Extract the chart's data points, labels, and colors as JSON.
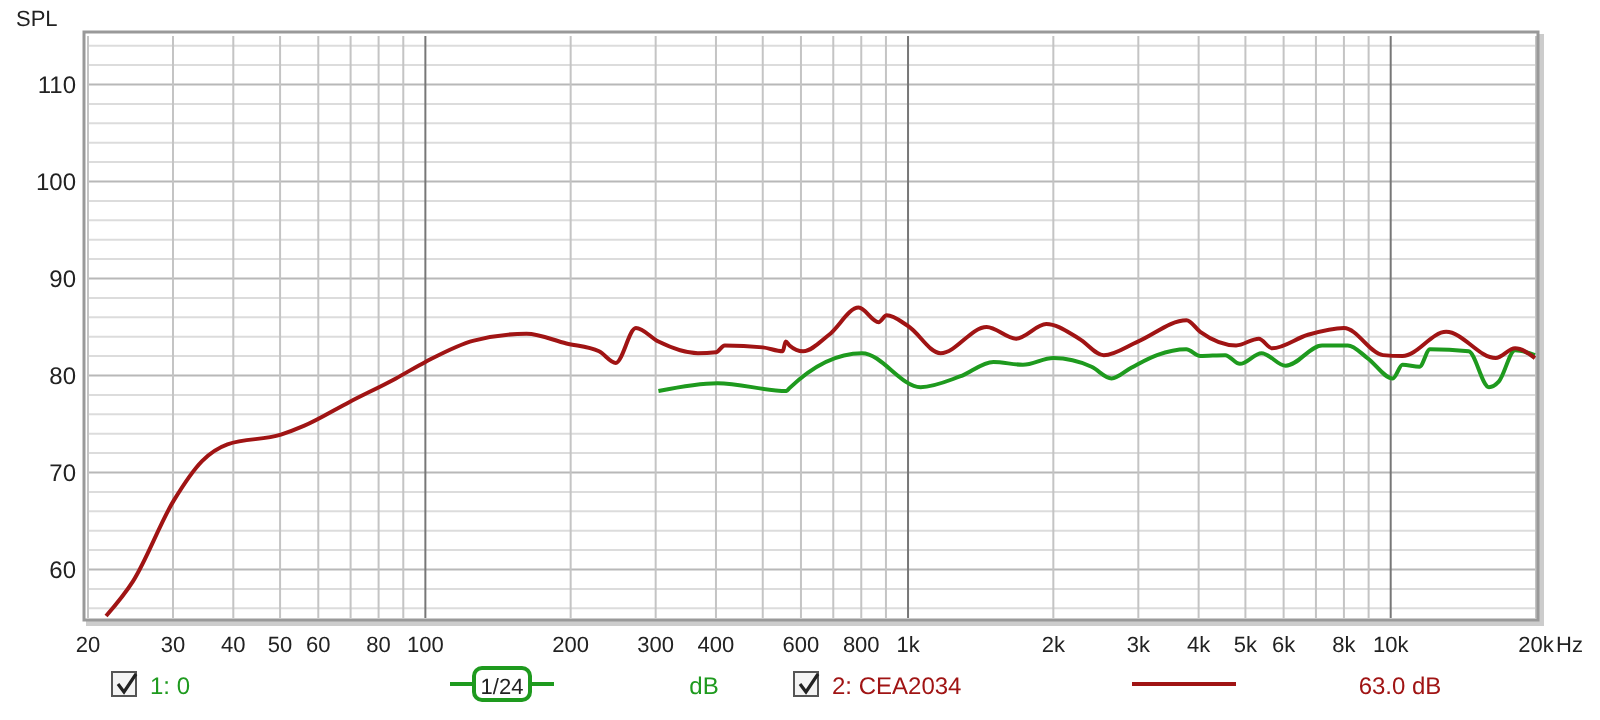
{
  "chart_data": {
    "type": "line",
    "ylabel": "SPL",
    "log": "x",
    "xlim": [
      20,
      20000
    ],
    "ylim": [
      55,
      115
    ],
    "xticks": [
      20,
      30,
      40,
      50,
      60,
      {
        "value": 70,
        "label": null
      },
      80,
      {
        "value": 90,
        "label": null
      },
      100,
      200,
      300,
      400,
      {
        "value": 500,
        "label": null
      },
      600,
      {
        "value": 700,
        "label": null
      },
      800,
      {
        "value": 900,
        "label": null
      },
      {
        "value": 1000,
        "label": "1k"
      },
      {
        "value": 2000,
        "label": "2k"
      },
      {
        "value": 3000,
        "label": "3k"
      },
      {
        "value": 4000,
        "label": "4k"
      },
      {
        "value": 5000,
        "label": "5k"
      },
      {
        "value": 6000,
        "label": "6k"
      },
      {
        "value": 7000,
        "label": null
      },
      {
        "value": 8000,
        "label": "8k"
      },
      {
        "value": 9000,
        "label": null
      },
      {
        "value": 10000,
        "label": "10k"
      },
      {
        "value": 20000,
        "label": "20k"
      }
    ],
    "xlabel": "Hz",
    "yticks": [
      {
        "value": 56,
        "label": null
      },
      {
        "value": 58,
        "label": null
      },
      60,
      {
        "value": 62,
        "label": null
      },
      {
        "value": 64,
        "label": null
      },
      {
        "value": 66,
        "label": null
      },
      {
        "value": 68,
        "label": null
      },
      70,
      {
        "value": 72,
        "label": null
      },
      {
        "value": 74,
        "label": null
      },
      {
        "value": 76,
        "label": null
      },
      {
        "value": 78,
        "label": null
      },
      80,
      {
        "value": 82,
        "label": null
      },
      {
        "value": 84,
        "label": null
      },
      {
        "value": 86,
        "label": null
      },
      {
        "value": 88,
        "label": null
      },
      90,
      {
        "value": 92,
        "label": null
      },
      {
        "value": 94,
        "label": null
      },
      {
        "value": 96,
        "label": null
      },
      {
        "value": 98,
        "label": null
      },
      100,
      {
        "value": 102,
        "label": null
      },
      {
        "value": 104,
        "label": null
      },
      {
        "value": 106,
        "label": null
      },
      {
        "value": 108,
        "label": null
      },
      110,
      {
        "value": 112,
        "label": null
      },
      {
        "value": 114,
        "label": null
      }
    ],
    "grid": true,
    "legend": "bottom",
    "marker": "none",
    "line_style": "solid",
    "series": [
      {
        "name": "1: 0",
        "color": "#1e9a1e",
        "x": [
          304,
          403,
          560,
          568,
          803,
          1062,
          1281,
          1503,
          1730,
          2000,
          2400,
          2640,
          2900,
          3280,
          3770,
          4030,
          4540,
          4870,
          5400,
          6060,
          7210,
          8150,
          8950,
          10100,
          10580,
          11470,
          12060,
          14500,
          15980,
          16760,
          18100,
          19900
        ],
        "values": [
          78.4,
          79.2,
          78.4,
          78.7,
          82.3,
          78.8,
          79.9,
          81.4,
          81.1,
          81.8,
          80.9,
          79.7,
          80.8,
          82.1,
          82.7,
          82.0,
          82.1,
          81.2,
          82.3,
          81.0,
          83.1,
          83.1,
          81.8,
          79.7,
          81.1,
          80.9,
          82.7,
          82.5,
          78.8,
          79.4,
          82.6,
          82.1
        ]
      },
      {
        "name": "2: CEA2034",
        "color": "#a01414",
        "x": [
          21.8,
          24.8,
          30.1,
          34.5,
          38.9,
          50.2,
          56,
          69.8,
          86.9,
          100,
          126,
          162,
          196,
          229,
          248,
          273,
          304,
          367,
          400,
          417,
          500,
          550,
          558,
          568,
          606,
          686,
          790,
          869,
          903,
          1000,
          1168,
          1455,
          1674,
          1934,
          2262,
          2544,
          2993,
          3775,
          4030,
          4784,
          5330,
          5680,
          6740,
          8000,
          9640,
          10580,
          13030,
          16500,
          18100,
          19900
        ],
        "values": [
          55.2,
          58.8,
          67.1,
          71.2,
          72.9,
          73.9,
          74.8,
          77.3,
          79.7,
          81.4,
          83.6,
          84.3,
          83.3,
          82.5,
          81.3,
          84.9,
          83.5,
          82.3,
          82.4,
          83.1,
          82.9,
          82.5,
          83.5,
          83.1,
          82.5,
          84.2,
          87.0,
          85.5,
          86.2,
          85.1,
          82.3,
          85.0,
          83.8,
          85.3,
          83.8,
          82.1,
          83.5,
          85.7,
          84.5,
          83.1,
          83.8,
          82.8,
          84.2,
          84.9,
          82.1,
          82.0,
          84.5,
          81.8,
          82.8,
          81.8
        ]
      }
    ],
    "annotations": [
      "1/24",
      "dB",
      "63.0 dB"
    ]
  }
}
